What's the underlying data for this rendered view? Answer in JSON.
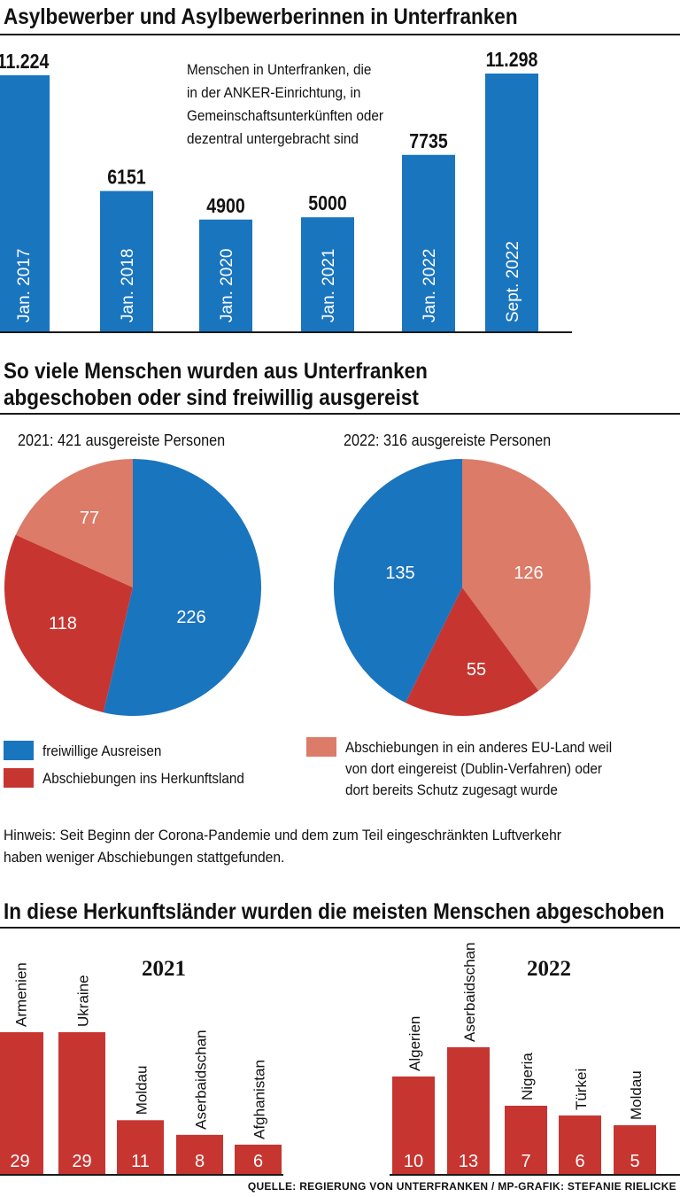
{
  "section1": {
    "title": "Asylbewerber und Asylbewerberinnen in Unterfranken",
    "note": [
      "Menschen in Unterfranken, die",
      "in der ANKER-Einrichtung, in",
      "Gemeinschaftsunterkünften oder",
      "dezentral untergebracht sind"
    ]
  },
  "section2": {
    "title_line1": "So viele Menschen wurden aus Unterfranken",
    "title_line2": "abgeschoben oder sind freiwillig ausgereist",
    "pie2021_title": "2021: 421 ausgereiste Personen",
    "pie2022_title": "2022: 316 ausgereiste Personen",
    "legend": [
      {
        "label": "freiwillige Ausreisen",
        "color": "#1a75bf"
      },
      {
        "label": "Abschiebungen ins Herkunftsland",
        "color": "#c73531"
      },
      {
        "label_lines": [
          "Abschiebungen in ein anderes EU-Land weil",
          "von dort eingereist (Dublin-Verfahren) oder",
          "dort bereits Schutz zugesagt wurde"
        ],
        "color": "#db7b68"
      }
    ],
    "hint_line1": "Hinweis: Seit Beginn der Corona-Pandemie und dem zum Teil eingeschränkten Luftverkehr",
    "hint_line2": "haben weniger Abschiebungen stattgefunden."
  },
  "section3": {
    "title": "In diese Herkunftsländer wurden die meisten Menschen abgeschoben",
    "label_2021": "2021",
    "label_2022": "2022"
  },
  "source": "QUELLE: REGIERUNG VON UNTERFRANKEN / MP-GRAFIK: STEFANIE RIELICKE",
  "colors": {
    "blue": "#1a75bf",
    "red": "#c73531",
    "salmon": "#db7b68",
    "text": "#111111"
  },
  "chart_data": [
    {
      "type": "bar",
      "title": "Asylbewerber und Asylbewerberinnen in Unterfranken",
      "categories": [
        "Jan. 2017",
        "Jan. 2018",
        "Jan. 2020",
        "Jan. 2021",
        "Jan. 2022",
        "Sept. 2022"
      ],
      "values": [
        11224,
        6151,
        4900,
        5000,
        7735,
        11298
      ],
      "value_labels": [
        "11.224",
        "6151",
        "4900",
        "5000",
        "7735",
        "11.298"
      ],
      "ylim": [
        0,
        13000
      ]
    },
    {
      "type": "pie",
      "title": "2021: 421 ausgereiste Personen",
      "labels": [
        "freiwillige Ausreisen",
        "Abschiebungen ins Herkunftsland",
        "Abschiebungen in ein anderes EU-Land"
      ],
      "values": [
        226,
        118,
        77
      ]
    },
    {
      "type": "pie",
      "title": "2022: 316 ausgereiste Personen",
      "labels": [
        "Abschiebungen in ein anderes EU-Land",
        "Abschiebungen ins Herkunftsland",
        "freiwillige Ausreisen"
      ],
      "values": [
        126,
        55,
        135
      ]
    },
    {
      "type": "bar",
      "title": "2021",
      "categories": [
        "Armenien",
        "Ukraine",
        "Moldau",
        "Aserbaidschan",
        "Afghanistan"
      ],
      "values": [
        29,
        29,
        11,
        8,
        6
      ]
    },
    {
      "type": "bar",
      "title": "2022",
      "categories": [
        "Algerien",
        "Aserbaidschan",
        "Nigeria",
        "Türkei",
        "Moldau"
      ],
      "values": [
        10,
        13,
        7,
        6,
        5
      ]
    }
  ]
}
